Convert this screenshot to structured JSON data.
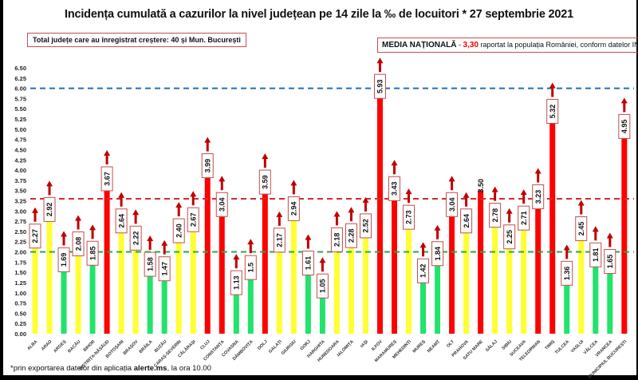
{
  "chart_data": {
    "type": "bar",
    "title": "Incidența cumulată a cazurilor la nivel județean pe 14 zile la ‰ de locuitori * 27 septembrie 2021",
    "categories": [
      "ALBA",
      "ARAD",
      "ARGEȘ",
      "BACĂU",
      "BIHOR",
      "BISTRIȚA-NĂSĂUD",
      "BOTOȘANI",
      "BRAȘOV",
      "BRĂILA",
      "BUZĂU",
      "CARAȘ-SEVERIN",
      "CĂLĂRAȘI",
      "CLUJ",
      "CONSTANȚA",
      "COVASNA",
      "DÂMBOVIȚA",
      "DOLJ",
      "GALAȚI",
      "GIURGIU",
      "GORJ",
      "HARGHITA",
      "HUNEDOARA",
      "IALOMIȚA",
      "IAȘI",
      "ILFOV",
      "MARAMUREȘ",
      "MEHEDINȚI",
      "MUREȘ",
      "NEAMȚ",
      "OLT",
      "PRAHOVA",
      "SATU MARE",
      "SĂLAJ",
      "SIBIU",
      "SUCEAVA",
      "TELEORMAN",
      "TIMIȘ",
      "TULCEA",
      "VASLUI",
      "VÂLCEA",
      "VRANCEA",
      "MUNICIPIUL BUCUREȘTI"
    ],
    "values": [
      2.27,
      2.92,
      1.69,
      2.08,
      1.85,
      3.67,
      2.64,
      2.22,
      1.58,
      1.47,
      2.4,
      2.67,
      3.99,
      3.04,
      1.13,
      1.5,
      3.59,
      2.17,
      2.94,
      1.61,
      1.05,
      2.18,
      2.28,
      2.52,
      5.93,
      3.43,
      2.73,
      1.42,
      1.84,
      3.04,
      2.64,
      3.5,
      2.78,
      2.25,
      2.71,
      3.23,
      5.32,
      1.36,
      2.45,
      1.81,
      1.65,
      4.95
    ],
    "value_labels": [
      "2.27",
      "2.92",
      "1.69",
      "2.08",
      "1.85",
      "3.67",
      "2.64",
      "2.22",
      "1.58",
      "1.47",
      "2.40",
      "2.67",
      "3.99",
      "3.04",
      "1.13",
      "1.5",
      "3.59",
      "2.17",
      "2.94",
      "1.61",
      "1.05",
      "2.18",
      "2.28",
      "2.52",
      "5.93",
      "3.43",
      "2.73",
      "1.42",
      "1.84",
      "3.04",
      "2.64",
      "3.50",
      "2.78",
      "2.25",
      "2.71",
      "3.23",
      "5.32",
      "1.36",
      "2.45",
      "1.81",
      "1.65",
      "4.95"
    ],
    "increase_arrow": [
      true,
      true,
      true,
      true,
      true,
      true,
      true,
      true,
      true,
      true,
      true,
      true,
      true,
      true,
      true,
      true,
      true,
      true,
      true,
      true,
      true,
      true,
      true,
      true,
      true,
      true,
      true,
      true,
      true,
      true,
      true,
      false,
      true,
      true,
      true,
      true,
      true,
      true,
      true,
      true,
      true,
      true
    ],
    "colors": {
      "low": "#22e36b",
      "mid": "#ffff33",
      "high": "#ff0000",
      "arrow": "#c00000",
      "label_border": "#c0504d"
    },
    "color_thresholds": [
      2.0,
      3.0
    ],
    "yticks": [
      "0.00",
      "0.25",
      "0.50",
      "0.75",
      "1.00",
      "1.25",
      "1.50",
      "1.75",
      "2.00",
      "2.25",
      "2.50",
      "2.75",
      "3.00",
      "3.25",
      "3.50",
      "3.75",
      "4.00",
      "4.25",
      "4.50",
      "4.75",
      "5.00",
      "5.25",
      "5.50",
      "5.75",
      "6.00",
      "6.25",
      "6.50"
    ],
    "ylim": [
      0,
      6.5
    ],
    "reference_lines": [
      {
        "value": 6.0,
        "color": "#1f6fbf"
      },
      {
        "value": 3.3,
        "color": "#d42a2a"
      },
      {
        "value": 2.0,
        "color": "#2aa84a"
      }
    ],
    "grid": false
  },
  "annotations": {
    "total_increase": "Total județe care au înregistrat creștere:  40 și Mun. București",
    "national_label": "MEDIA NAȚIONALĂ",
    "national_dash": " - ",
    "national_value": "3,30",
    "national_rest": " raportat la populația României, conform datelor INS",
    "footnote_pre": "*prin exportarea datelor din aplicația ",
    "footnote_bold": "alerte.ms",
    "footnote_post": ", la ora 10.00"
  }
}
